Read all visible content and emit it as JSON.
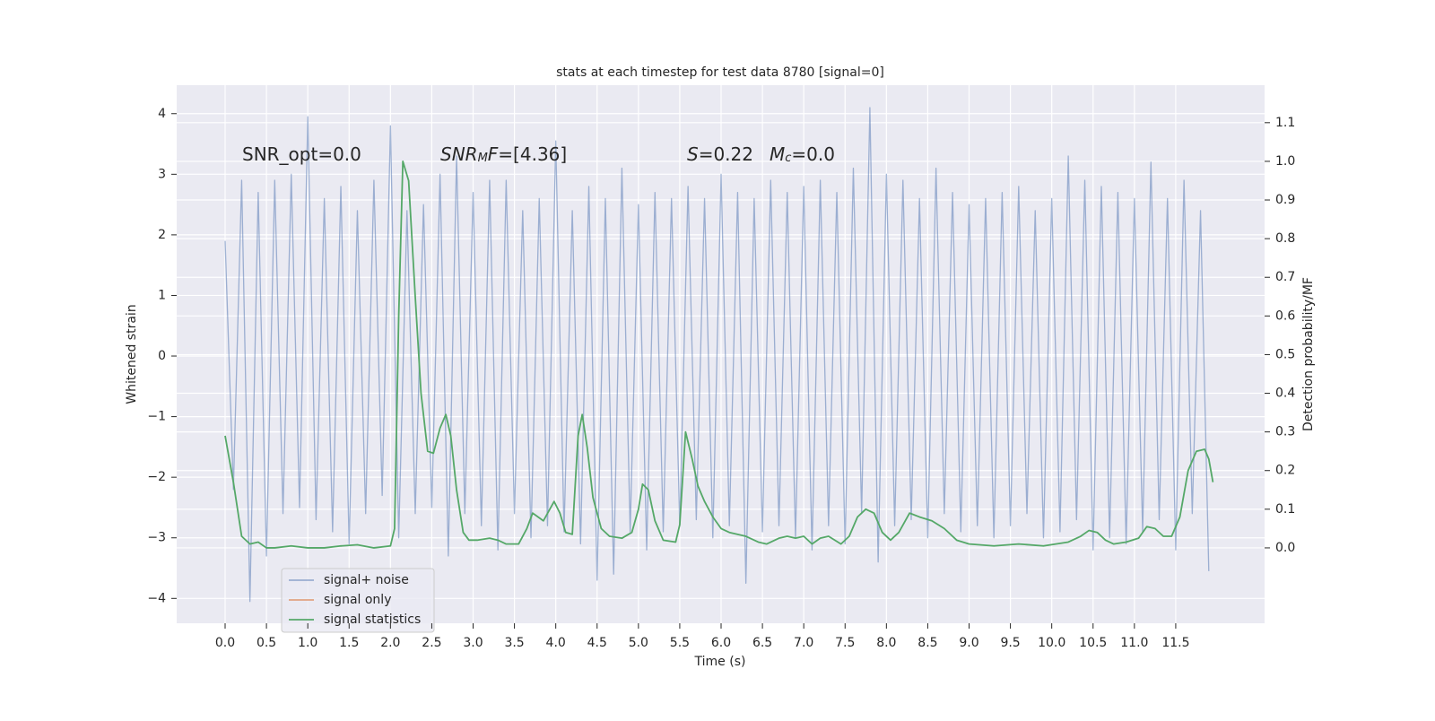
{
  "chart_data": {
    "type": "line",
    "title": "stats at each timestep for test data 8780 [signal=0]",
    "xlabel": "Time (s)",
    "ylabel": "Whitened strain",
    "y2label": "Detection probability/MF",
    "xlim": [
      -0.586,
      12.575
    ],
    "ylim": [
      -4.41,
      4.47
    ],
    "y2lim": [
      -0.195,
      1.197
    ],
    "xticks": [
      {
        "value": 0,
        "label": "0.0"
      },
      0.5,
      {
        "value": 1,
        "label": "1.0"
      },
      1.5,
      {
        "value": 2,
        "label": "2.0"
      },
      2.5,
      {
        "value": 3,
        "label": "3.0"
      },
      3.5,
      {
        "value": 4,
        "label": "4.0"
      },
      4.5,
      {
        "value": 5,
        "label": "5.0"
      },
      5.5,
      {
        "value": 6,
        "label": "6.0"
      },
      6.5,
      {
        "value": 7,
        "label": "7.0"
      },
      7.5,
      {
        "value": 8,
        "label": "8.0"
      },
      8.5,
      {
        "value": 9,
        "label": "9.0"
      },
      9.5,
      {
        "value": 10,
        "label": "10.0"
      },
      10.5,
      {
        "value": 11,
        "label": "11.0"
      },
      11.5
    ],
    "yticks": [
      {
        "value": -4,
        "label": "−4"
      },
      {
        "value": -3,
        "label": "−3"
      },
      {
        "value": -2,
        "label": "−2"
      },
      {
        "value": -1,
        "label": "−1"
      },
      0,
      1,
      2,
      3,
      4
    ],
    "y2ticks": [
      {
        "value": 0,
        "label": "0.0"
      },
      0.1,
      0.2,
      0.3,
      0.4,
      0.5,
      0.6,
      0.7,
      0.8,
      0.9,
      {
        "value": 1,
        "label": "1.0"
      },
      1.1
    ],
    "grid": true,
    "legend": "lower left",
    "annotations": [
      [
        {
          "text": "SNR_opt=0.0"
        }
      ],
      [
        {
          "text": "SNR",
          "italic": true
        },
        {
          "text": "M",
          "italic": true,
          "sub": true
        },
        {
          "text": "F",
          "italic": true
        },
        {
          "text": "=[4.36]"
        }
      ],
      [
        {
          "text": "S",
          "italic": true
        },
        {
          "text": "=0.22"
        }
      ],
      [
        {
          "text": "M",
          "italic": true
        },
        {
          "text": "c",
          "italic": true,
          "sub": true
        },
        {
          "text": "=0.0"
        }
      ]
    ],
    "series": [
      {
        "name": "signal+ noise",
        "color": "#4c72b0",
        "opacity": 0.5,
        "x": [
          0.0,
          0.1,
          0.2,
          0.3,
          0.4,
          0.5,
          0.6,
          0.7,
          0.8,
          0.9,
          1.0,
          1.1,
          1.2,
          1.3,
          1.4,
          1.5,
          1.6,
          1.7,
          1.8,
          1.9,
          2.0,
          2.1,
          2.2,
          2.3,
          2.4,
          2.5,
          2.6,
          2.7,
          2.8,
          2.9,
          3.0,
          3.1,
          3.2,
          3.3,
          3.4,
          3.5,
          3.6,
          3.7,
          3.8,
          3.9,
          4.0,
          4.1,
          4.2,
          4.3,
          4.4,
          4.5,
          4.6,
          4.7,
          4.8,
          4.9,
          5.0,
          5.1,
          5.2,
          5.3,
          5.4,
          5.5,
          5.6,
          5.7,
          5.8,
          5.9,
          6.0,
          6.1,
          6.2,
          6.3,
          6.4,
          6.5,
          6.6,
          6.7,
          6.8,
          6.9,
          7.0,
          7.1,
          7.2,
          7.3,
          7.4,
          7.5,
          7.6,
          7.7,
          7.8,
          7.9,
          8.0,
          8.1,
          8.2,
          8.3,
          8.4,
          8.5,
          8.6,
          8.7,
          8.8,
          8.9,
          9.0,
          9.1,
          9.2,
          9.3,
          9.4,
          9.5,
          9.6,
          9.7,
          9.8,
          9.9,
          10.0,
          10.1,
          10.2,
          10.3,
          10.4,
          10.5,
          10.6,
          10.7,
          10.8,
          10.9,
          11.0,
          11.1,
          11.2,
          11.3,
          11.4,
          11.5,
          11.6,
          11.7,
          11.8,
          11.9
        ],
        "values": [
          1.9,
          -2.2,
          2.9,
          -4.05,
          2.7,
          -3.3,
          2.9,
          -2.6,
          3.0,
          -2.5,
          3.95,
          -2.7,
          2.6,
          -2.9,
          2.8,
          -3.1,
          2.4,
          -2.6,
          2.9,
          -2.3,
          3.8,
          -3.0,
          2.4,
          -2.6,
          2.5,
          -2.5,
          3.0,
          -3.3,
          3.3,
          -2.6,
          2.7,
          -2.8,
          2.9,
          -3.2,
          2.9,
          -2.6,
          2.4,
          -3.0,
          2.6,
          -2.8,
          3.55,
          -2.9,
          2.4,
          -3.1,
          2.8,
          -3.7,
          2.6,
          -3.6,
          3.1,
          -2.9,
          2.5,
          -3.2,
          2.7,
          -2.9,
          2.6,
          -2.8,
          2.8,
          -2.7,
          2.6,
          -3.0,
          3.0,
          -2.8,
          2.7,
          -3.75,
          2.6,
          -2.9,
          2.9,
          -2.8,
          2.7,
          -3.0,
          2.8,
          -3.2,
          2.9,
          -2.8,
          2.7,
          -3.1,
          3.1,
          -2.6,
          4.1,
          -3.4,
          3.0,
          -2.8,
          2.9,
          -2.7,
          2.6,
          -3.0,
          3.1,
          -2.6,
          2.7,
          -2.9,
          2.5,
          -2.8,
          2.6,
          -3.0,
          2.7,
          -2.8,
          2.8,
          -2.6,
          2.4,
          -3.0,
          2.6,
          -2.9,
          3.3,
          -2.7,
          2.9,
          -3.2,
          2.8,
          -3.0,
          2.7,
          -3.1,
          2.6,
          -2.9,
          3.2,
          -2.7,
          2.6,
          -3.2,
          2.9,
          -2.6,
          2.4,
          -3.55
        ]
      },
      {
        "name": "signal only",
        "color": "#dd8452",
        "opacity": 0.7,
        "x": [],
        "values": []
      },
      {
        "name": "signal statistics",
        "color": "#55a868",
        "opacity": 1,
        "axis": "y2",
        "x": [
          0.0,
          0.1,
          0.2,
          0.3,
          0.4,
          0.5,
          0.6,
          0.8,
          1.0,
          1.2,
          1.4,
          1.6,
          1.8,
          2.0,
          2.05,
          2.1,
          2.15,
          2.22,
          2.3,
          2.37,
          2.45,
          2.52,
          2.6,
          2.67,
          2.73,
          2.8,
          2.88,
          2.95,
          3.05,
          3.2,
          3.3,
          3.4,
          3.55,
          3.65,
          3.72,
          3.85,
          3.98,
          4.05,
          4.12,
          4.2,
          4.27,
          4.32,
          4.38,
          4.45,
          4.55,
          4.65,
          4.8,
          4.92,
          5.0,
          5.05,
          5.12,
          5.2,
          5.3,
          5.45,
          5.5,
          5.57,
          5.65,
          5.72,
          5.8,
          5.9,
          6.0,
          6.1,
          6.3,
          6.45,
          6.55,
          6.7,
          6.8,
          6.9,
          7.0,
          7.1,
          7.2,
          7.3,
          7.45,
          7.55,
          7.65,
          7.75,
          7.85,
          7.95,
          8.05,
          8.15,
          8.28,
          8.4,
          8.55,
          8.7,
          8.85,
          9.0,
          9.3,
          9.6,
          9.9,
          10.2,
          10.35,
          10.45,
          10.55,
          10.65,
          10.75,
          10.9,
          11.05,
          11.15,
          11.25,
          11.35,
          11.45,
          11.55,
          11.65,
          11.75,
          11.85,
          11.9,
          11.95
        ],
        "values": [
          0.29,
          0.17,
          0.03,
          0.01,
          0.015,
          0.0,
          0.0,
          0.005,
          0.0,
          0.0,
          0.005,
          0.008,
          0.0,
          0.005,
          0.05,
          0.6,
          1.0,
          0.95,
          0.65,
          0.4,
          0.25,
          0.245,
          0.31,
          0.345,
          0.29,
          0.15,
          0.04,
          0.02,
          0.02,
          0.025,
          0.02,
          0.01,
          0.01,
          0.05,
          0.09,
          0.07,
          0.12,
          0.09,
          0.04,
          0.035,
          0.29,
          0.345,
          0.26,
          0.13,
          0.05,
          0.03,
          0.025,
          0.04,
          0.1,
          0.165,
          0.15,
          0.07,
          0.02,
          0.015,
          0.06,
          0.3,
          0.23,
          0.16,
          0.12,
          0.08,
          0.05,
          0.04,
          0.03,
          0.015,
          0.01,
          0.025,
          0.03,
          0.025,
          0.03,
          0.01,
          0.025,
          0.03,
          0.01,
          0.03,
          0.08,
          0.1,
          0.09,
          0.04,
          0.02,
          0.04,
          0.09,
          0.08,
          0.07,
          0.05,
          0.02,
          0.01,
          0.005,
          0.01,
          0.005,
          0.015,
          0.03,
          0.045,
          0.04,
          0.02,
          0.01,
          0.015,
          0.025,
          0.055,
          0.05,
          0.03,
          0.03,
          0.08,
          0.2,
          0.25,
          0.255,
          0.23,
          0.17
        ]
      }
    ]
  }
}
